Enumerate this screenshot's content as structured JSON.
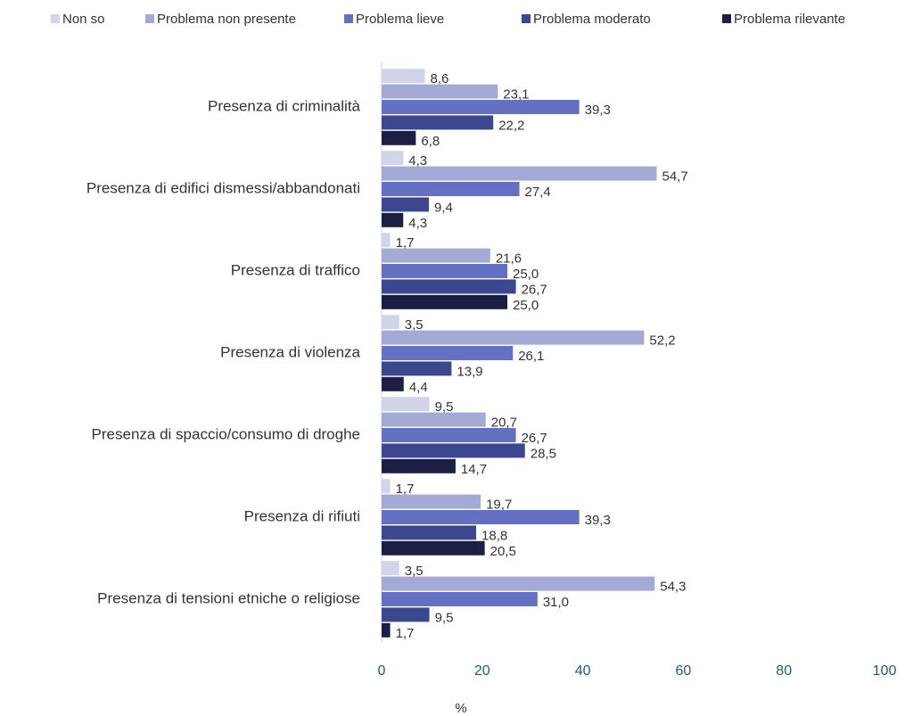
{
  "chart_data": {
    "type": "hbar",
    "categories": [
      "Presenza di criminalità",
      "Presenza di edifici dismessi/abbandonati",
      "Presenza di traffico",
      "Presenza di violenza",
      "Presenza di spaccio/consumo di droghe",
      "Presenza di rifiuti",
      "Presenza di tensioni etniche o religiose"
    ],
    "series": [
      {
        "name": "Non so",
        "color": "#d0d5ea",
        "values": [
          8.6,
          4.3,
          1.7,
          3.5,
          9.5,
          1.7,
          3.5
        ],
        "value_labels": [
          "8,6",
          "4,3",
          "1,7",
          "3,5",
          "9,5",
          "1,7",
          "3,5"
        ]
      },
      {
        "name": "Problema non presente",
        "color": "#a3aad6",
        "values": [
          23.1,
          54.7,
          21.6,
          52.2,
          20.7,
          19.7,
          54.3
        ],
        "value_labels": [
          "23,1",
          "54,7",
          "21,6",
          "52,2",
          "20,7",
          "19,7",
          "54,3"
        ]
      },
      {
        "name": "Problema lieve",
        "color": "#6470c1",
        "values": [
          39.3,
          27.4,
          25.0,
          26.1,
          26.7,
          39.3,
          31.0
        ],
        "value_labels": [
          "39,3",
          "27,4",
          "25,0",
          "26,1",
          "26,7",
          "39,3",
          "31,0"
        ]
      },
      {
        "name": "Problema moderato",
        "color": "#3b4890",
        "values": [
          22.2,
          9.4,
          26.7,
          13.9,
          28.5,
          18.8,
          9.5
        ],
        "value_labels": [
          "22,2",
          "9,4",
          "26,7",
          "13,9",
          "28,5",
          "18,8",
          "9,5"
        ]
      },
      {
        "name": "Problema rilevante",
        "color": "#1b1f45",
        "values": [
          6.8,
          4.3,
          25.0,
          4.4,
          14.7,
          20.5,
          1.7
        ],
        "value_labels": [
          "6,8",
          "4,3",
          "25,0",
          "4,4",
          "14,7",
          "20,5",
          "1,7"
        ]
      }
    ],
    "xlabel": "%",
    "xlim": [
      0,
      100
    ],
    "xticks": [
      0,
      20,
      40,
      60,
      80,
      100
    ],
    "legend": "top"
  }
}
